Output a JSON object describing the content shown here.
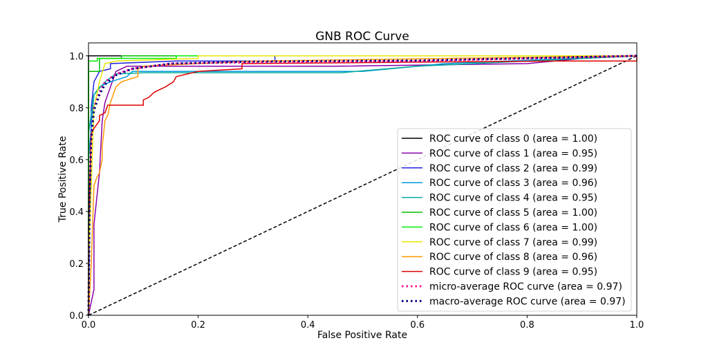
{
  "chart_data": {
    "type": "line",
    "title": "GNB ROC Curve",
    "xlabel": "False Positive Rate",
    "ylabel": "True Positive Rate",
    "xlim": [
      0,
      1.0
    ],
    "ylim": [
      0,
      1.05
    ],
    "xticks": [
      "0.0",
      "0.2",
      "0.4",
      "0.6",
      "0.8",
      "1.0"
    ],
    "yticks": [
      "0.0",
      "0.2",
      "0.4",
      "0.6",
      "0.8",
      "1.0"
    ],
    "grid": false,
    "legend_position": "lower-right",
    "diagonal": {
      "points": [
        [
          0,
          0
        ],
        [
          1,
          1
        ]
      ],
      "color": "#000000",
      "style": "dashed"
    },
    "series": [
      {
        "name": "ROC curve of class 0 (area = 1.00)",
        "color": "#000000",
        "style": "solid",
        "points": [
          [
            0,
            0
          ],
          [
            0,
            1
          ],
          [
            1,
            1
          ]
        ]
      },
      {
        "name": "ROC curve of class 1 (area = 0.95)",
        "color": "#8800aa",
        "style": "solid",
        "points": [
          [
            0,
            0
          ],
          [
            0.01,
            0.1
          ],
          [
            0.01,
            0.35
          ],
          [
            0.015,
            0.45
          ],
          [
            0.02,
            0.55
          ],
          [
            0.025,
            0.75
          ],
          [
            0.03,
            0.82
          ],
          [
            0.04,
            0.88
          ],
          [
            0.05,
            0.94
          ],
          [
            0.07,
            0.96
          ],
          [
            0.45,
            0.96
          ],
          [
            0.8,
            0.97
          ],
          [
            0.9,
            0.99
          ],
          [
            1,
            1
          ]
        ]
      },
      {
        "name": "ROC curve of class 2 (area = 0.99)",
        "color": "#2222dd",
        "style": "solid",
        "points": [
          [
            0,
            0
          ],
          [
            0.005,
            0.8
          ],
          [
            0.01,
            0.9
          ],
          [
            0.02,
            0.94
          ],
          [
            0.04,
            0.95
          ],
          [
            0.04,
            0.97
          ],
          [
            0.16,
            0.98
          ],
          [
            0.34,
            0.98
          ],
          [
            0.34,
            1
          ],
          [
            1,
            1
          ]
        ]
      },
      {
        "name": "ROC curve of class 3 (area = 0.96)",
        "color": "#0099dd",
        "style": "solid",
        "points": [
          [
            0,
            0
          ],
          [
            0,
            0.6
          ],
          [
            0.01,
            0.85
          ],
          [
            0.02,
            0.88
          ],
          [
            0.04,
            0.9
          ],
          [
            0.07,
            0.92
          ],
          [
            0.08,
            0.94
          ],
          [
            0.5,
            0.94
          ],
          [
            0.65,
            0.97
          ],
          [
            1,
            1
          ]
        ]
      },
      {
        "name": "ROC curve of class 4 (area = 0.95)",
        "color": "#00aa99",
        "style": "solid",
        "points": [
          [
            0,
            0
          ],
          [
            0,
            0.7
          ],
          [
            0.01,
            0.85
          ],
          [
            0.03,
            0.9
          ],
          [
            0.05,
            0.93
          ],
          [
            0.1,
            0.935
          ],
          [
            0.46,
            0.935
          ],
          [
            0.6,
            0.96
          ],
          [
            1,
            1
          ]
        ]
      },
      {
        "name": "ROC curve of class 5 (area = 1.00)",
        "color": "#00bb00",
        "style": "solid",
        "points": [
          [
            0,
            0
          ],
          [
            0,
            0.94
          ],
          [
            0.02,
            0.94
          ],
          [
            0.02,
            0.99
          ],
          [
            0.06,
            0.99
          ],
          [
            0.06,
            1
          ],
          [
            1,
            1
          ]
        ]
      },
      {
        "name": "ROC curve of class 6 (area = 1.00)",
        "color": "#00ee00",
        "style": "solid",
        "points": [
          [
            0,
            0
          ],
          [
            0,
            0.98
          ],
          [
            0.016,
            0.98
          ],
          [
            0.016,
            0.99
          ],
          [
            0.16,
            0.99
          ],
          [
            0.16,
            1
          ],
          [
            1,
            1
          ]
        ]
      },
      {
        "name": "ROC curve of class 7 (area = 0.99)",
        "color": "#e8e800",
        "style": "solid",
        "points": [
          [
            0,
            0
          ],
          [
            0,
            0.2
          ],
          [
            0.005,
            0.5
          ],
          [
            0.01,
            0.8
          ],
          [
            0.02,
            0.9
          ],
          [
            0.03,
            0.97
          ],
          [
            0.05,
            0.98
          ],
          [
            0.2,
            0.99
          ],
          [
            0.2,
            1
          ],
          [
            1,
            1
          ]
        ]
      },
      {
        "name": "ROC curve of class 8 (area = 0.96)",
        "color": "#ff9900",
        "style": "solid",
        "points": [
          [
            0,
            0
          ],
          [
            0.005,
            0.2
          ],
          [
            0.01,
            0.5
          ],
          [
            0.015,
            0.53
          ],
          [
            0.02,
            0.55
          ],
          [
            0.025,
            0.6
          ],
          [
            0.025,
            0.65
          ],
          [
            0.03,
            0.75
          ],
          [
            0.035,
            0.77
          ],
          [
            0.04,
            0.82
          ],
          [
            0.05,
            0.88
          ],
          [
            0.06,
            0.9
          ],
          [
            0.075,
            0.91
          ],
          [
            0.09,
            0.92
          ],
          [
            0.09,
            0.95
          ],
          [
            0.1,
            0.96
          ],
          [
            0.2,
            0.97
          ],
          [
            0.3,
            0.98
          ],
          [
            1,
            1
          ]
        ]
      },
      {
        "name": "ROC curve of class 9 (area = 0.95)",
        "color": "#dd0000",
        "style": "solid",
        "points": [
          [
            0,
            0
          ],
          [
            0,
            0.35
          ],
          [
            0.005,
            0.7
          ],
          [
            0.01,
            0.72
          ],
          [
            0.02,
            0.75
          ],
          [
            0.02,
            0.77
          ],
          [
            0.03,
            0.78
          ],
          [
            0.035,
            0.81
          ],
          [
            0.1,
            0.81
          ],
          [
            0.1,
            0.83
          ],
          [
            0.11,
            0.84
          ],
          [
            0.12,
            0.86
          ],
          [
            0.14,
            0.88
          ],
          [
            0.155,
            0.9
          ],
          [
            0.16,
            0.92
          ],
          [
            0.2,
            0.94
          ],
          [
            0.28,
            0.95
          ],
          [
            0.28,
            0.97
          ],
          [
            0.85,
            0.98
          ],
          [
            0.9,
            0.98
          ],
          [
            1,
            0.98
          ],
          [
            1,
            1
          ]
        ]
      },
      {
        "name": "micro-average ROC curve (area = 0.97)",
        "color": "#ff1493",
        "style": "dotted",
        "points": [
          [
            0,
            0
          ],
          [
            0.002,
            0.5
          ],
          [
            0.005,
            0.7
          ],
          [
            0.01,
            0.8
          ],
          [
            0.02,
            0.86
          ],
          [
            0.03,
            0.9
          ],
          [
            0.05,
            0.93
          ],
          [
            0.08,
            0.95
          ],
          [
            0.15,
            0.97
          ],
          [
            0.3,
            0.975
          ],
          [
            0.6,
            0.98
          ],
          [
            1,
            1
          ]
        ]
      },
      {
        "name": "macro-average ROC curve (area = 0.97)",
        "color": "#000080",
        "style": "dotted",
        "points": [
          [
            0,
            0
          ],
          [
            0.002,
            0.45
          ],
          [
            0.005,
            0.68
          ],
          [
            0.01,
            0.79
          ],
          [
            0.02,
            0.85
          ],
          [
            0.03,
            0.89
          ],
          [
            0.05,
            0.925
          ],
          [
            0.08,
            0.95
          ],
          [
            0.15,
            0.97
          ],
          [
            0.3,
            0.978
          ],
          [
            0.6,
            0.982
          ],
          [
            1,
            1
          ]
        ]
      }
    ]
  }
}
